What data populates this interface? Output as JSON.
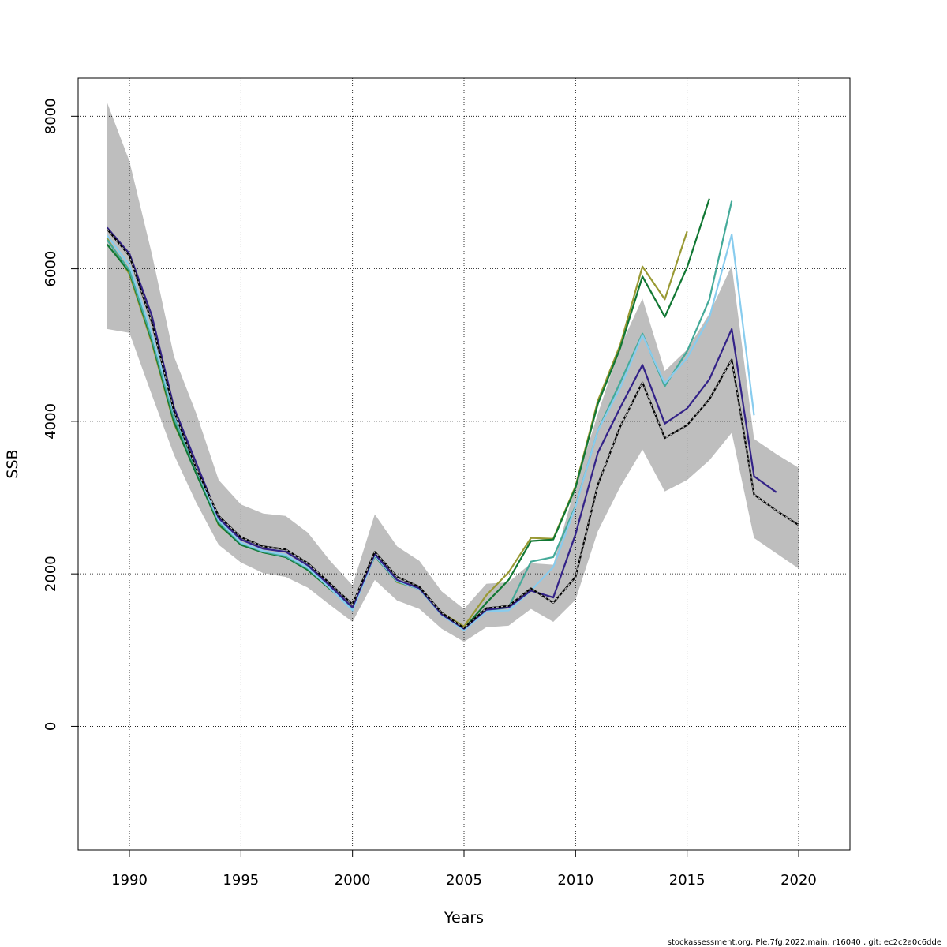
{
  "chart_data": {
    "type": "line",
    "title": "",
    "xlabel": "Years",
    "ylabel": "SSB",
    "xlim": [
      1987.7,
      2022.3
    ],
    "ylim": [
      -1620,
      8500
    ],
    "x_ticks": [
      "1990",
      "1995",
      "2000",
      "2005",
      "2010",
      "2015",
      "2020"
    ],
    "y_ticks": [
      "0",
      "2000",
      "4000",
      "6000",
      "8000"
    ],
    "grid": true,
    "legend": "none",
    "footer": "stockassessment.org, Ple.7fg.2022.main, r16040 , git: ec2c2a0c6dde",
    "confidence_band": {
      "x": [
        1989,
        1990,
        1991,
        1992,
        1993,
        1994,
        1995,
        1996,
        1997,
        1998,
        1999,
        2000,
        2001,
        2002,
        2003,
        2004,
        2005,
        2006,
        2007,
        2008,
        2009,
        2010,
        2011,
        2012,
        2013,
        2014,
        2015,
        2016,
        2017,
        2018,
        2019,
        2020
      ],
      "lower": [
        5210,
        5160,
        4350,
        3560,
        2930,
        2380,
        2150,
        2010,
        1960,
        1820,
        1590,
        1370,
        1920,
        1650,
        1540,
        1280,
        1110,
        1300,
        1320,
        1540,
        1370,
        1660,
        2560,
        3140,
        3630,
        3080,
        3230,
        3490,
        3850,
        2470,
        2270,
        2070
      ],
      "upper": [
        8180,
        7410,
        6200,
        4850,
        4100,
        3230,
        2910,
        2790,
        2760,
        2540,
        2170,
        1850,
        2780,
        2360,
        2170,
        1770,
        1540,
        1870,
        1890,
        2140,
        2120,
        3160,
        4100,
        4980,
        5610,
        4660,
        4940,
        5410,
        6040,
        3770,
        3570,
        3390
      ],
      "color": "#bebebe"
    },
    "series": [
      {
        "color": "#000000",
        "dashed_center": true,
        "x": [
          1989,
          1990,
          1991,
          1992,
          1993,
          1994,
          1995,
          1996,
          1997,
          1998,
          1999,
          2000,
          2001,
          2002,
          2003,
          2004,
          2005,
          2006,
          2007,
          2008,
          2009,
          2010,
          2011,
          2012,
          2013,
          2014,
          2015,
          2016,
          2017,
          2018,
          2019,
          2020
        ],
        "y": [
          6520,
          6170,
          5300,
          4130,
          3380,
          2760,
          2480,
          2360,
          2320,
          2140,
          1870,
          1600,
          2290,
          1960,
          1830,
          1490,
          1290,
          1550,
          1580,
          1810,
          1620,
          1960,
          3170,
          3930,
          4510,
          3780,
          3950,
          4290,
          4810,
          3040,
          2830,
          2640
        ]
      },
      {
        "color": "#332288",
        "x": [
          1989,
          1990,
          1991,
          1992,
          1993,
          1994,
          1995,
          1996,
          1997,
          1998,
          1999,
          2000,
          2001,
          2002,
          2003,
          2004,
          2005,
          2006,
          2007,
          2008,
          2009,
          2010,
          2011,
          2012,
          2013,
          2014,
          2015,
          2016,
          2017,
          2018,
          2019
        ],
        "y": [
          6540,
          6200,
          5390,
          4180,
          3450,
          2730,
          2450,
          2330,
          2290,
          2110,
          1840,
          1560,
          2260,
          1920,
          1810,
          1470,
          1280,
          1530,
          1560,
          1780,
          1690,
          2520,
          3590,
          4180,
          4740,
          3970,
          4170,
          4550,
          5210,
          3280,
          3070
        ]
      },
      {
        "color": "#88ccee",
        "x": [
          1989,
          1990,
          1991,
          1992,
          1993,
          1994,
          1995,
          1996,
          1997,
          1998,
          1999,
          2000,
          2001,
          2002,
          2003,
          2004,
          2005,
          2006,
          2007,
          2008,
          2009,
          2010,
          2011,
          2012,
          2013,
          2014,
          2015,
          2016,
          2017,
          2018
        ],
        "y": [
          6440,
          6050,
          5150,
          4100,
          3380,
          2700,
          2410,
          2300,
          2250,
          2080,
          1810,
          1520,
          2240,
          1910,
          1800,
          1460,
          1260,
          1510,
          1520,
          1780,
          2090,
          2880,
          3880,
          4440,
          5130,
          4500,
          4830,
          5360,
          6450,
          4080
        ]
      },
      {
        "color": "#44aa99",
        "x": [
          1989,
          1990,
          1991,
          1992,
          1993,
          1994,
          1995,
          1996,
          1997,
          1998,
          1999,
          2000,
          2001,
          2002,
          2003,
          2004,
          2005,
          2006,
          2007,
          2008,
          2009,
          2010,
          2011,
          2012,
          2013,
          2014,
          2015,
          2016,
          2017
        ],
        "y": [
          6380,
          5980,
          5090,
          4040,
          3360,
          2680,
          2400,
          2290,
          2230,
          2070,
          1810,
          1540,
          2240,
          1900,
          1800,
          1460,
          1270,
          1520,
          1560,
          2160,
          2220,
          2890,
          3880,
          4510,
          5150,
          4460,
          4920,
          5600,
          6890
        ]
      },
      {
        "color": "#117733",
        "x": [
          1989,
          1990,
          1991,
          1992,
          1993,
          1994,
          1995,
          1996,
          1997,
          1998,
          1999,
          2000,
          2001,
          2002,
          2003,
          2004,
          2005,
          2006,
          2007,
          2008,
          2009,
          2010,
          2011,
          2012,
          2013,
          2014,
          2015,
          2016
        ],
        "y": [
          6320,
          5960,
          5060,
          3990,
          3310,
          2650,
          2380,
          2280,
          2220,
          2050,
          1800,
          1560,
          2230,
          1900,
          1800,
          1470,
          1280,
          1620,
          1920,
          2430,
          2450,
          3130,
          4230,
          4960,
          5900,
          5370,
          6020,
          6920
        ]
      },
      {
        "color": "#999933",
        "x": [
          1989,
          1990,
          1991,
          1992,
          1993,
          1994,
          1995,
          1996,
          1997,
          1998,
          1999,
          2000,
          2001,
          2002,
          2003,
          2004,
          2005,
          2006,
          2007,
          2008,
          2009,
          2010,
          2011,
          2012,
          2013,
          2014,
          2015
        ],
        "y": [
          6400,
          5930,
          5030,
          3970,
          3330,
          2640,
          2390,
          2280,
          2240,
          2050,
          1800,
          1570,
          2270,
          1890,
          1810,
          1490,
          1310,
          1720,
          2020,
          2470,
          2460,
          3150,
          4270,
          5000,
          6030,
          5600,
          6490
        ]
      }
    ]
  }
}
